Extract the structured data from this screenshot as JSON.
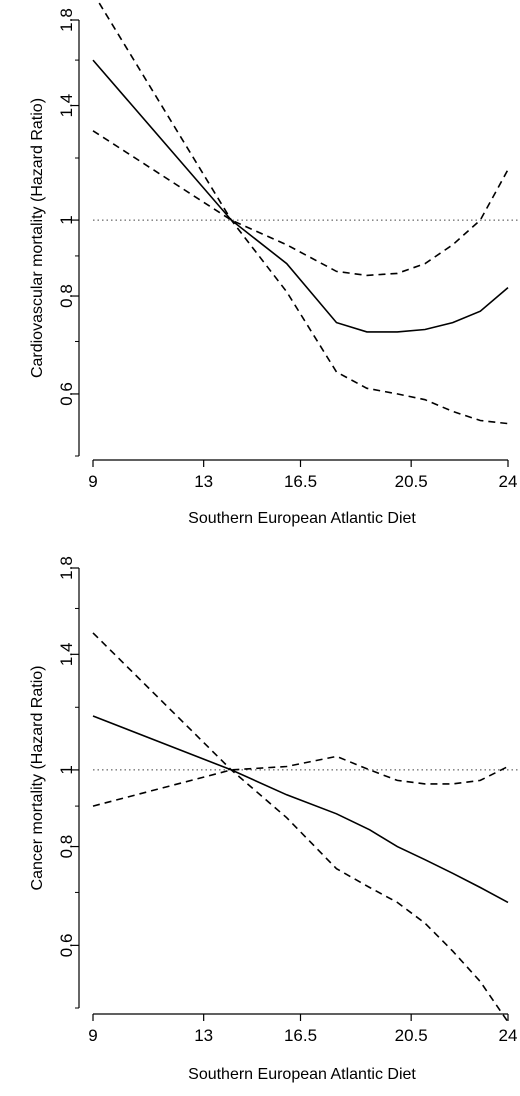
{
  "chart_data": [
    {
      "type": "line",
      "xlabel": "Southern European Atlantic Diet",
      "ylabel": "Cardiovascular mortality (Hazard Ratio)",
      "x_ticks": [
        9,
        13,
        16.5,
        20.5,
        24
      ],
      "x_tick_labels": [
        "9",
        "13",
        "16.5",
        "20.5",
        "24"
      ],
      "y_ticks": [
        0.6,
        0.8,
        1,
        1.4,
        1.8
      ],
      "y_tick_labels": [
        "0.6",
        "0.8",
        "1",
        "1.4",
        "1.8"
      ],
      "y_minor_ticks": [
        0.5,
        0.7,
        0.9,
        1.2,
        1.6
      ],
      "xlim": [
        9,
        24
      ],
      "ylim": [
        0.5,
        1.8
      ],
      "log_scale_y": true,
      "reference_line_y": 1,
      "series": [
        {
          "style": "solid",
          "x": [
            9,
            14,
            16,
            17.8,
            18.9,
            20,
            21,
            22,
            23,
            24
          ],
          "y": [
            1.6,
            1.0,
            0.88,
            0.74,
            0.72,
            0.72,
            0.725,
            0.74,
            0.765,
            0.82
          ]
        },
        {
          "style": "dashed",
          "x": [
            9,
            14,
            16,
            17.8,
            18.9,
            20,
            21,
            22,
            23,
            24
          ],
          "y": [
            1.95,
            1.0,
            0.81,
            0.64,
            0.61,
            0.6,
            0.59,
            0.57,
            0.555,
            0.55
          ]
        },
        {
          "style": "dashed",
          "x": [
            9,
            14,
            16,
            17.8,
            18.9,
            20,
            21,
            22,
            23,
            24
          ],
          "y": [
            1.3,
            1.0,
            0.93,
            0.86,
            0.85,
            0.855,
            0.88,
            0.93,
            1.0,
            1.16
          ]
        }
      ]
    },
    {
      "type": "line",
      "xlabel": "Southern European Atlantic Diet",
      "ylabel": "Cancer mortality (Hazard Ratio)",
      "x_ticks": [
        9,
        13,
        16.5,
        20.5,
        24
      ],
      "x_tick_labels": [
        "9",
        "13",
        "16.5",
        "20.5",
        "24"
      ],
      "y_ticks": [
        0.6,
        0.8,
        1,
        1.4,
        1.8
      ],
      "y_tick_labels": [
        "0.6",
        "0.8",
        "1",
        "1.4",
        "1.8"
      ],
      "y_minor_ticks": [
        0.5,
        0.7,
        0.9,
        1.2,
        1.6
      ],
      "xlim": [
        9,
        24
      ],
      "ylim": [
        0.5,
        1.8
      ],
      "log_scale_y": true,
      "reference_line_y": 1,
      "series": [
        {
          "style": "solid",
          "x": [
            9,
            14,
            16,
            17.8,
            19,
            20,
            21,
            22,
            23,
            24
          ],
          "y": [
            1.17,
            1.0,
            0.93,
            0.88,
            0.84,
            0.8,
            0.77,
            0.74,
            0.71,
            0.68
          ]
        },
        {
          "style": "dashed",
          "x": [
            9,
            14,
            16,
            17.8,
            19,
            20,
            21,
            22,
            23,
            24
          ],
          "y": [
            1.49,
            1.0,
            0.87,
            0.75,
            0.71,
            0.68,
            0.64,
            0.59,
            0.54,
            0.48
          ]
        },
        {
          "style": "dashed",
          "x": [
            9,
            14,
            16,
            17.8,
            19,
            20,
            21,
            22,
            23,
            24
          ],
          "y": [
            0.9,
            1.0,
            1.01,
            1.04,
            1.0,
            0.97,
            0.96,
            0.96,
            0.97,
            1.01
          ]
        }
      ]
    }
  ]
}
